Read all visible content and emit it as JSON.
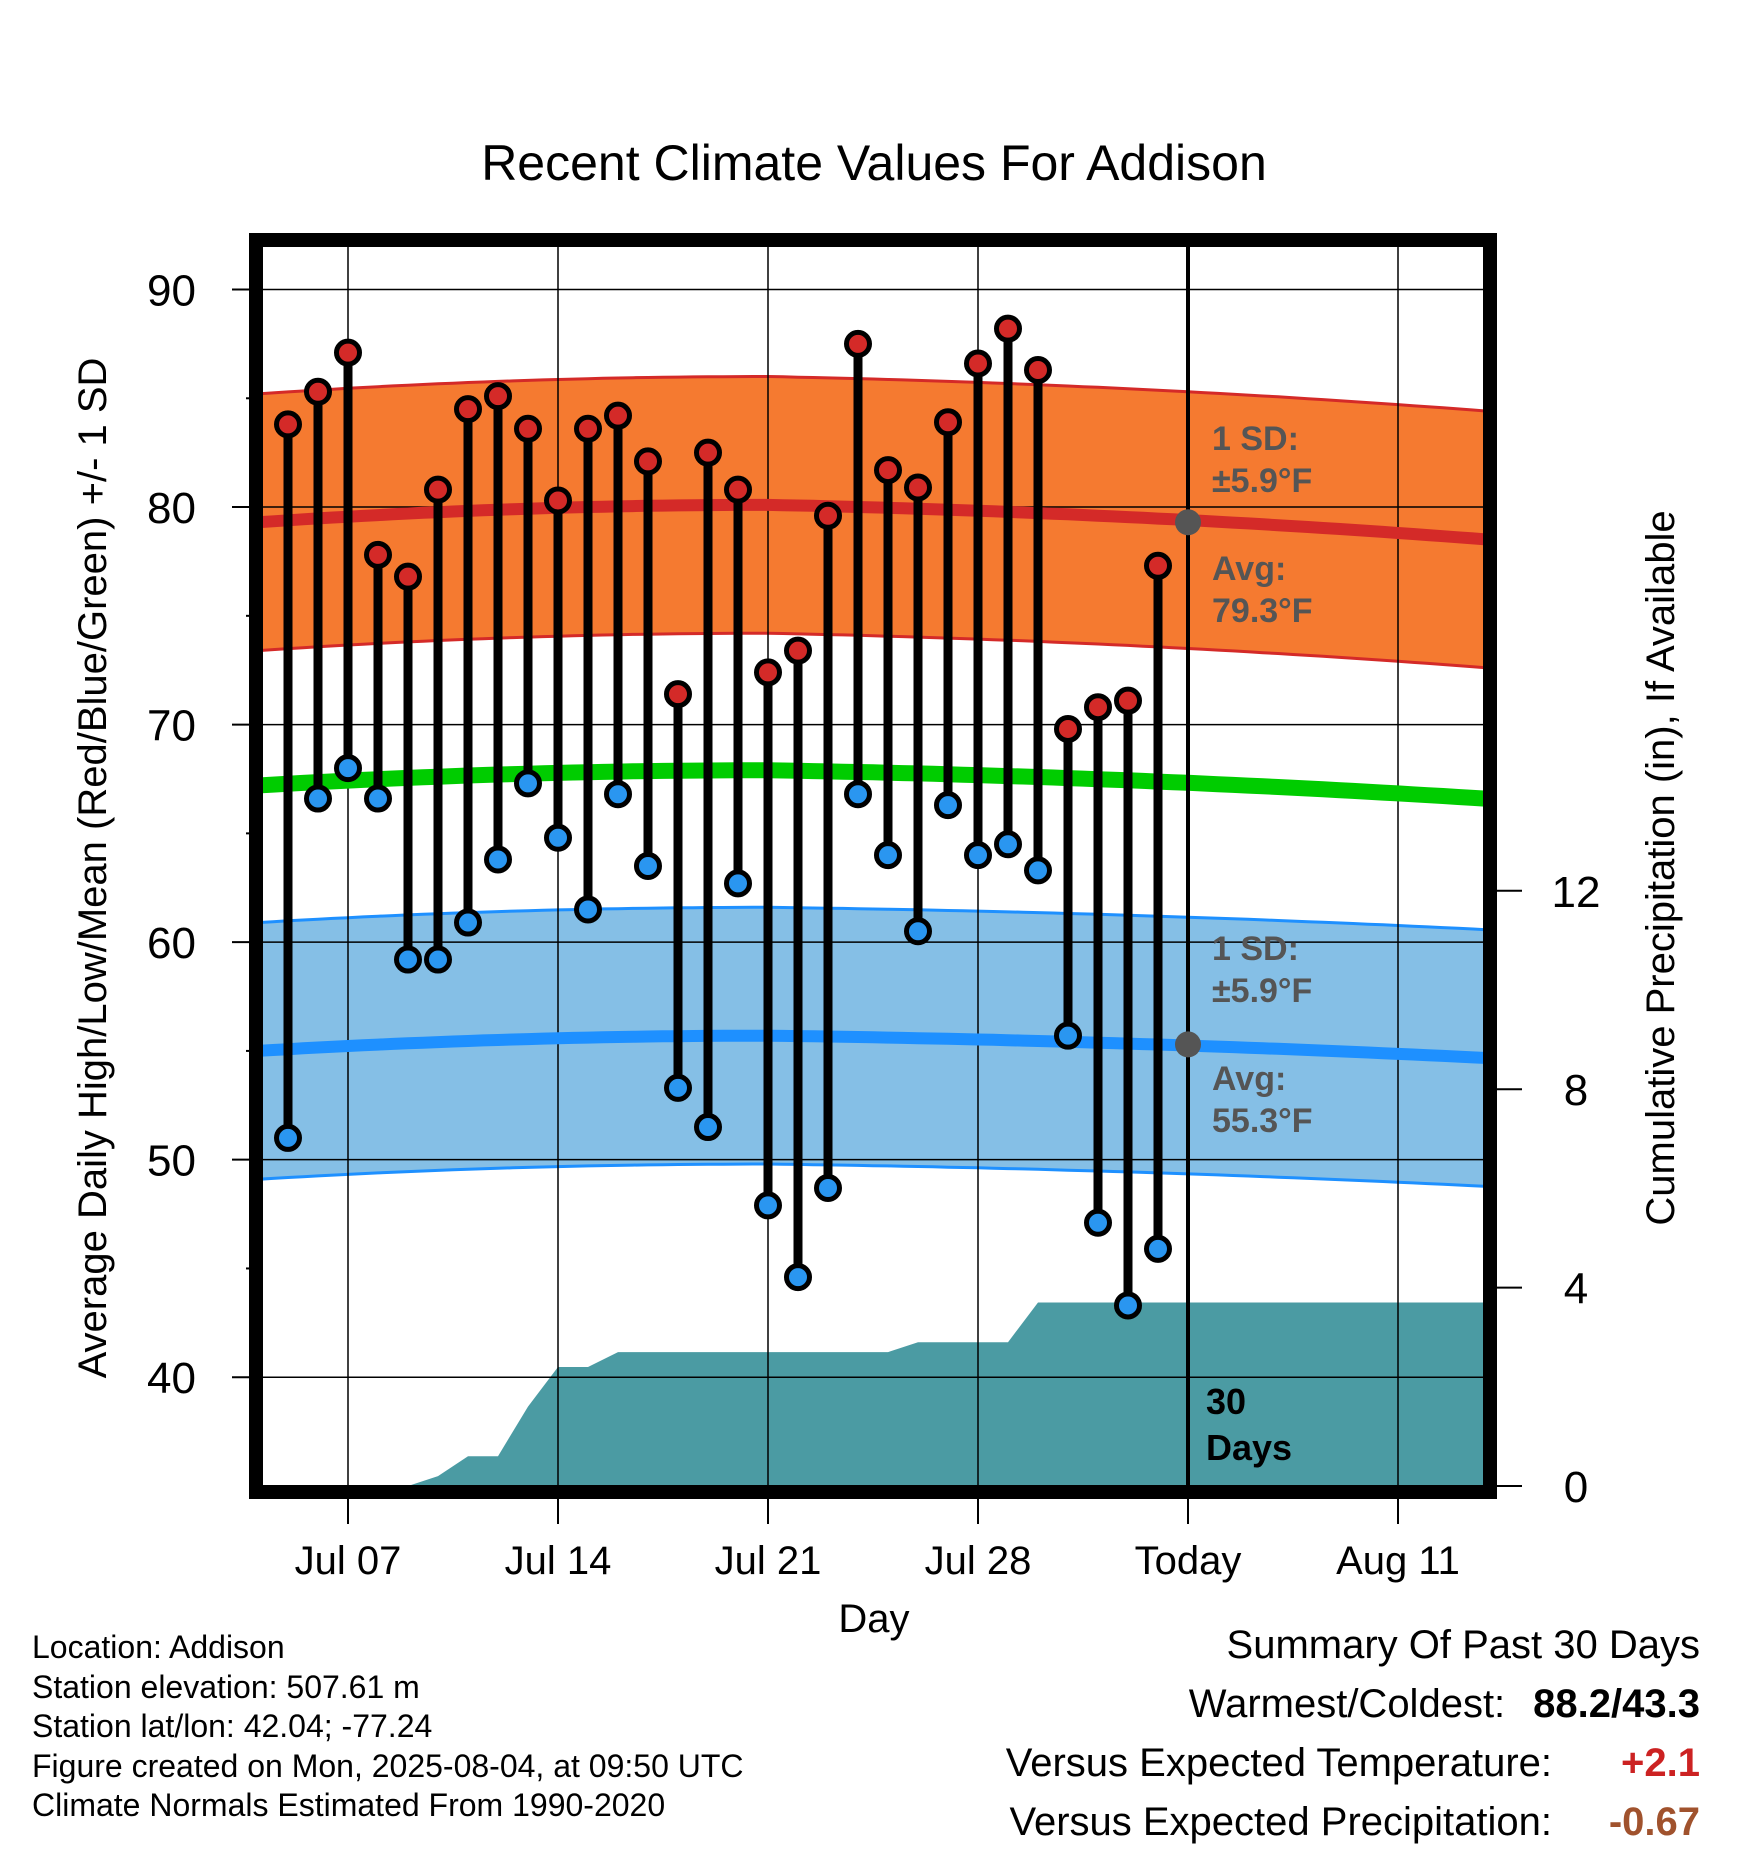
{
  "chart_data": {
    "type": "line",
    "title": "Recent Climate Values For Addison",
    "xlabel": "Day",
    "ylabel": "Average Daily High/Low/Mean (Red/Blue/Green) +/- 1 SD",
    "y2label": "Cumulative Precipitation (in), If Available",
    "ylim": [
      35,
      92
    ],
    "yticks": [
      40,
      50,
      60,
      70,
      80,
      90
    ],
    "y2lim": [
      0,
      30
    ],
    "y2ticks": [
      0,
      4,
      8,
      12
    ],
    "xticks": [
      "Jul 07",
      "Jul 14",
      "Jul 21",
      "Jul 28",
      "Today",
      "Aug 11"
    ],
    "today_label": "30\nDays",
    "days": [
      "Jul 05",
      "Jul 06",
      "Jul 07",
      "Jul 08",
      "Jul 09",
      "Jul 10",
      "Jul 11",
      "Jul 12",
      "Jul 13",
      "Jul 14",
      "Jul 15",
      "Jul 16",
      "Jul 17",
      "Jul 18",
      "Jul 19",
      "Jul 20",
      "Jul 21",
      "Jul 22",
      "Jul 23",
      "Jul 24",
      "Jul 25",
      "Jul 26",
      "Jul 27",
      "Jul 28",
      "Jul 29",
      "Jul 30",
      "Jul 31",
      "Aug 01",
      "Aug 02",
      "Aug 03"
    ],
    "highs": [
      83.8,
      85.3,
      87.1,
      77.8,
      76.8,
      80.8,
      84.5,
      85.1,
      83.6,
      80.3,
      83.6,
      84.2,
      82.1,
      71.4,
      82.5,
      80.8,
      72.4,
      73.4,
      79.6,
      87.5,
      81.7,
      80.9,
      83.9,
      86.6,
      88.2,
      86.3,
      69.8,
      70.8,
      71.1,
      77.3
    ],
    "lows": [
      51.0,
      66.6,
      68.0,
      66.6,
      59.2,
      59.2,
      60.9,
      63.8,
      67.3,
      64.8,
      61.5,
      66.8,
      63.5,
      53.3,
      51.5,
      62.7,
      47.9,
      44.6,
      48.7,
      66.8,
      64.0,
      60.5,
      66.3,
      64.0,
      64.5,
      63.3,
      55.7,
      47.1,
      43.3,
      45.9
    ],
    "normals": {
      "days_offset": [
        -1,
        0,
        1,
        2,
        3,
        4,
        5,
        6,
        7,
        8,
        9,
        10,
        11,
        12,
        13,
        14,
        15,
        16,
        17,
        18,
        19,
        20,
        21,
        22,
        23,
        24,
        25,
        26,
        27,
        28,
        29,
        30,
        31,
        32,
        33,
        34,
        35,
        36,
        37,
        38,
        39,
        40,
        41
      ],
      "high_start": 79.3,
      "high_peak": 80.1,
      "high_end": 78.4,
      "high_today": 79.3,
      "low_start": 55.0,
      "low_peak": 55.7,
      "low_end": 54.6,
      "low_today": 55.3,
      "mean_start": 67.2,
      "mean_peak": 67.9,
      "mean_end": 66.5,
      "sd": 5.9
    },
    "high_annotation": {
      "sd_label": "1 SD:",
      "sd_value": "±5.9°F",
      "avg_label": "Avg:",
      "avg_value": "79.3°F"
    },
    "low_annotation": {
      "sd_label": "1 SD:",
      "sd_value": "±5.9°F",
      "avg_label": "Avg:",
      "avg_value": "55.3°F"
    },
    "precip_cumulative": [
      0,
      0,
      0,
      0,
      0,
      0,
      0.2,
      0.6,
      0.6,
      1.6,
      2.4,
      2.4,
      2.7,
      2.7,
      2.7,
      2.7,
      2.7,
      2.7,
      2.7,
      2.7,
      2.7,
      2.7,
      2.9,
      2.9,
      2.9,
      2.9,
      3.7,
      3.7,
      3.7,
      3.7,
      3.7
    ],
    "colors": {
      "high_band": "#f57a30",
      "high_line": "#d42a28",
      "low_band": "#85bfe6",
      "low_line": "#1e90ff",
      "mean_line": "#00cc00",
      "precip": "#4b9ba3",
      "high_marker": "#d42a28",
      "low_marker": "#2a96f0",
      "annotation_text": "#555555"
    },
    "grid": true
  },
  "footer": {
    "location": "Location: Addison",
    "elevation": "Station elevation: 507.61 m",
    "latlon": "Station lat/lon: 42.04; -77.24",
    "created": "Figure created on Mon, 2025-08-04, at 09:50 UTC",
    "normals": "Climate Normals Estimated From 1990-2020"
  },
  "summary": {
    "title": "Summary Of Past 30 Days",
    "warmest_label": "Warmest/Coldest:",
    "warmest_value": "88.2/43.3",
    "temp_label": "Versus Expected Temperature:",
    "temp_value": "+2.1",
    "temp_color": "#cc2222",
    "precip_label": "Versus Expected Precipitation:",
    "precip_value": "-0.67",
    "precip_color": "#a0522d"
  }
}
